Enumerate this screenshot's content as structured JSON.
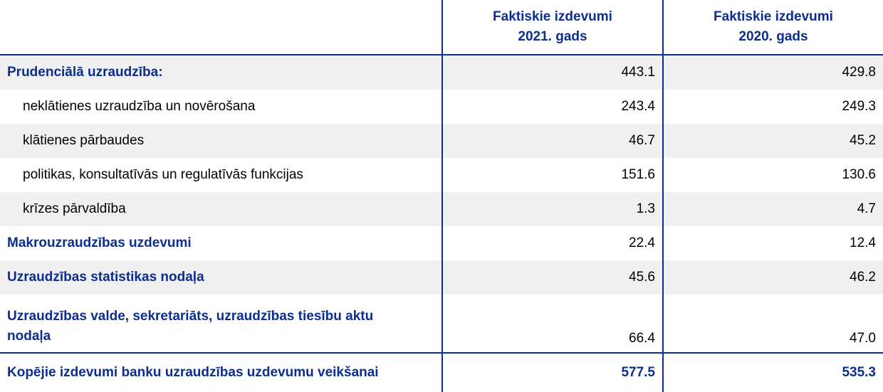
{
  "header": {
    "col_label": "",
    "col_2021_line1": "Faktiskie izdevumi",
    "col_2021_line2": "2021. gads",
    "col_2020_line1": "Faktiskie izdevumi",
    "col_2020_line2": "2020. gads"
  },
  "rows": [
    {
      "label": "Prudenciālā uzraudzība:",
      "v2021": "443.1",
      "v2020": "429.8"
    },
    {
      "label": "neklātienes uzraudzība un novērošana",
      "v2021": "243.4",
      "v2020": "249.3"
    },
    {
      "label": "klātienes pārbaudes",
      "v2021": "46.7",
      "v2020": "45.2"
    },
    {
      "label": "politikas, konsultatīvās un regulatīvās funkcijas",
      "v2021": "151.6",
      "v2020": "130.6"
    },
    {
      "label": "krīzes pārvaldība",
      "v2021": "1.3",
      "v2020": "4.7"
    },
    {
      "label": "Makrouzraudzības uzdevumi",
      "v2021": "22.4",
      "v2020": "12.4"
    },
    {
      "label": "Uzraudzības statistikas nodaļa",
      "v2021": "45.6",
      "v2020": "46.2"
    },
    {
      "label": "Uzraudzības valde, sekretariāts, uzraudzības tiesību aktu nodaļa",
      "v2021": "66.4",
      "v2020": "47.0"
    }
  ],
  "total": {
    "label": "Kopējie izdevumi banku uzraudzības uzdevumu veikšanai",
    "v2021": "577.5",
    "v2020": "535.3"
  },
  "colors": {
    "accent": "#0b2e8f",
    "stripe": "#f0f0f0"
  }
}
